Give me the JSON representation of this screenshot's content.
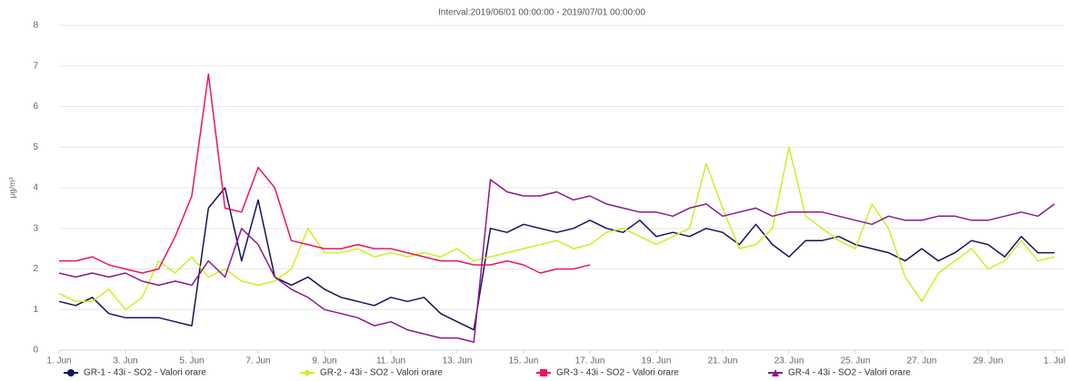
{
  "chart_data": {
    "type": "line",
    "title": "Interval:2019/06/01 00:00:00 - 2019/07/01 00:00:00",
    "y_label": "µg/m³",
    "x": [
      1,
      1.5,
      2,
      2.5,
      3,
      3.5,
      4,
      4.5,
      5,
      5.5,
      6,
      6.5,
      7,
      7.5,
      8,
      8.5,
      9,
      9.5,
      10,
      10.5,
      11,
      11.5,
      12,
      12.5,
      13,
      13.5,
      14,
      14.5,
      15,
      15.5,
      16,
      16.5,
      17,
      17.5,
      18,
      18.5,
      19,
      19.5,
      20,
      20.5,
      21,
      21.5,
      22,
      22.5,
      23,
      23.5,
      24,
      24.5,
      25,
      25.5,
      26,
      26.5,
      27,
      27.5,
      28,
      28.5,
      29,
      29.5,
      30,
      30.5,
      31
    ],
    "xlim": [
      1,
      31
    ],
    "xticks": [
      {
        "value": 1,
        "label": "1. Jun"
      },
      {
        "value": 3,
        "label": "3. Jun"
      },
      {
        "value": 5,
        "label": "5. Jun"
      },
      {
        "value": 7,
        "label": "7. Jun"
      },
      {
        "value": 9,
        "label": "9. Jun"
      },
      {
        "value": 11,
        "label": "11. Jun"
      },
      {
        "value": 13,
        "label": "13. Jun"
      },
      {
        "value": 15,
        "label": "15. Jun"
      },
      {
        "value": 17,
        "label": "17. Jun"
      },
      {
        "value": 19,
        "label": "19. Jun"
      },
      {
        "value": 21,
        "label": "21. Jun"
      },
      {
        "value": 23,
        "label": "23. Jun"
      },
      {
        "value": 25,
        "label": "25. Jun"
      },
      {
        "value": 27,
        "label": "27. Jun"
      },
      {
        "value": 29,
        "label": "29. Jun"
      },
      {
        "value": 31,
        "label": "1. Jul"
      }
    ],
    "ylim": [
      0,
      8
    ],
    "yticks": [
      0,
      1,
      2,
      3,
      4,
      5,
      6,
      7,
      8
    ],
    "grid": true,
    "series": [
      {
        "name": "GR-1 - 43i - SO2 - Valori orare",
        "color": "#15135e",
        "values": [
          1.2,
          1.1,
          1.3,
          0.9,
          0.8,
          0.8,
          0.8,
          0.7,
          0.6,
          3.5,
          4.0,
          2.2,
          3.7,
          1.8,
          1.6,
          1.8,
          1.5,
          1.3,
          1.2,
          1.1,
          1.3,
          1.2,
          1.3,
          0.9,
          0.7,
          0.5,
          3.0,
          2.9,
          3.1,
          3.0,
          2.9,
          3.0,
          3.2,
          3.0,
          2.9,
          3.2,
          2.8,
          2.9,
          2.8,
          3.0,
          2.9,
          2.6,
          3.1,
          2.6,
          2.3,
          2.7,
          2.7,
          2.8,
          2.6,
          2.5,
          2.4,
          2.2,
          2.5,
          2.2,
          2.4,
          2.7,
          2.6,
          2.3,
          2.8,
          2.4,
          2.4
        ]
      },
      {
        "name": "GR-2 - 43i - SO2 - Valori orare",
        "color": "#ccf022",
        "values": [
          1.4,
          1.2,
          1.2,
          1.5,
          1.0,
          1.3,
          2.2,
          1.9,
          2.3,
          1.8,
          2.0,
          1.7,
          1.6,
          1.7,
          2.0,
          3.0,
          2.4,
          2.4,
          2.5,
          2.3,
          2.4,
          2.3,
          2.4,
          2.3,
          2.5,
          2.2,
          2.3,
          2.4,
          2.5,
          2.6,
          2.7,
          2.5,
          2.6,
          2.9,
          3.0,
          2.8,
          2.6,
          2.8,
          3.0,
          4.6,
          3.5,
          2.5,
          2.6,
          3.0,
          5.0,
          3.3,
          3.0,
          2.7,
          2.5,
          3.6,
          3.0,
          1.8,
          1.2,
          1.9,
          2.2,
          2.5,
          2.0,
          2.2,
          2.7,
          2.2,
          2.3
        ]
      },
      {
        "name": "GR-3 - 43i - SO2 - Valori orare",
        "color": "#f0145a",
        "values": [
          2.2,
          2.2,
          2.3,
          2.1,
          2.0,
          1.9,
          2.0,
          2.8,
          3.8,
          6.8,
          3.5,
          3.4,
          4.5,
          4.0,
          2.7,
          2.6,
          2.5,
          2.5,
          2.6,
          2.5,
          2.5,
          2.4,
          2.3,
          2.2,
          2.2,
          2.1,
          2.1,
          2.2,
          2.1,
          1.9,
          2.0,
          2.0,
          2.1,
          null,
          null,
          null,
          null,
          null,
          null,
          null,
          null,
          null,
          null,
          null,
          null,
          null,
          null,
          null,
          null,
          null,
          null,
          null,
          null,
          null,
          null,
          null,
          null,
          null,
          null,
          null,
          null
        ]
      },
      {
        "name": "GR-4 - 43i - SO2 - Valori orare",
        "color": "#8a1a8c",
        "values": [
          1.9,
          1.8,
          1.9,
          1.8,
          1.9,
          1.7,
          1.6,
          1.7,
          1.6,
          2.2,
          1.8,
          3.0,
          2.6,
          1.8,
          1.5,
          1.3,
          1.0,
          0.9,
          0.8,
          0.6,
          0.7,
          0.5,
          0.4,
          0.3,
          0.3,
          0.2,
          4.2,
          3.9,
          3.8,
          3.8,
          3.9,
          3.7,
          3.8,
          3.6,
          3.5,
          3.4,
          3.4,
          3.3,
          3.5,
          3.6,
          3.3,
          3.4,
          3.5,
          3.3,
          3.4,
          3.4,
          3.4,
          3.3,
          3.2,
          3.1,
          3.3,
          3.2,
          3.2,
          3.3,
          3.3,
          3.2,
          3.2,
          3.3,
          3.4,
          3.3,
          3.6
        ]
      }
    ]
  }
}
